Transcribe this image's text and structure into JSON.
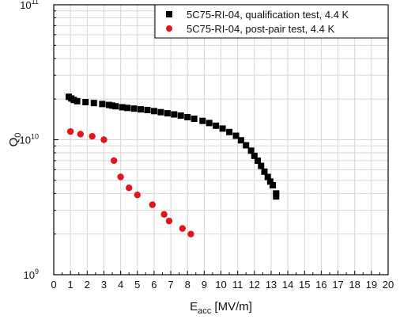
{
  "chart_data": {
    "type": "scatter",
    "xlabel": "E",
    "xlabel_sub": "acc",
    "xlabel_unit": " [MV/m]",
    "ylabel": "Q",
    "ylabel_sub": "0",
    "xlim": [
      0,
      20
    ],
    "ylim": [
      1000000000,
      100000000000
    ],
    "yscale": "log",
    "grid": true,
    "legend_position": "top-right",
    "x_ticks": [
      "0",
      "1",
      "2",
      "3",
      "4",
      "5",
      "6",
      "7",
      "8",
      "9",
      "10",
      "11",
      "12",
      "13",
      "14",
      "15",
      "16",
      "17",
      "18",
      "19",
      "20"
    ],
    "y_ticks": [
      {
        "base": "10",
        "exp": "9",
        "value": 1000000000
      },
      {
        "base": "10",
        "exp": "10",
        "value": 10000000000
      },
      {
        "base": "10",
        "exp": "11",
        "value": 100000000000
      }
    ],
    "series": [
      {
        "name": "5C75-RI-04, qualification test, 4.4 K",
        "marker": "square",
        "color": "#000000",
        "points": [
          [
            0.9,
            20800000000.0
          ],
          [
            1.05,
            20200000000.0
          ],
          [
            1.2,
            19700000000.0
          ],
          [
            1.4,
            19300000000.0
          ],
          [
            1.9,
            19000000000.0
          ],
          [
            2.4,
            18700000000.0
          ],
          [
            2.9,
            18400000000.0
          ],
          [
            3.3,
            18100000000.0
          ],
          [
            3.5,
            17900000000.0
          ],
          [
            3.7,
            17700000000.0
          ],
          [
            4.1,
            17400000000.0
          ],
          [
            4.4,
            17200000000.0
          ],
          [
            4.8,
            17000000000.0
          ],
          [
            5.2,
            16800000000.0
          ],
          [
            5.6,
            16600000000.0
          ],
          [
            6.0,
            16300000000.0
          ],
          [
            6.4,
            16000000000.0
          ],
          [
            6.8,
            15700000000.0
          ],
          [
            7.2,
            15400000000.0
          ],
          [
            7.6,
            15100000000.0
          ],
          [
            8.0,
            14700000000.0
          ],
          [
            8.4,
            14300000000.0
          ],
          [
            8.9,
            13800000000.0
          ],
          [
            9.3,
            13300000000.0
          ],
          [
            9.7,
            12700000000.0
          ],
          [
            10.1,
            12100000000.0
          ],
          [
            10.5,
            11400000000.0
          ],
          [
            10.9,
            10700000000.0
          ],
          [
            11.2,
            9900000000.0
          ],
          [
            11.5,
            9100000000.0
          ],
          [
            11.8,
            8300000000.0
          ],
          [
            12.0,
            7600000000.0
          ],
          [
            12.2,
            7000000000.0
          ],
          [
            12.4,
            6400000000.0
          ],
          [
            12.6,
            5800000000.0
          ],
          [
            12.8,
            5300000000.0
          ],
          [
            12.95,
            4900000000.0
          ],
          [
            13.1,
            4600000000.0
          ],
          [
            13.3,
            4000000000.0
          ],
          [
            13.3,
            3800000000.0
          ]
        ]
      },
      {
        "name": "5C75-RI-04, post-pair test, 4.4 K",
        "marker": "circle",
        "color": "#e3141c",
        "points": [
          [
            1.0,
            11500000000.0
          ],
          [
            1.6,
            11000000000.0
          ],
          [
            2.3,
            10600000000.0
          ],
          [
            3.0,
            10000000000.0
          ],
          [
            3.6,
            7000000000.0
          ],
          [
            4.0,
            5300000000.0
          ],
          [
            4.5,
            4400000000.0
          ],
          [
            5.0,
            3900000000.0
          ],
          [
            5.9,
            3300000000.0
          ],
          [
            6.6,
            2800000000.0
          ],
          [
            6.9,
            2500000000.0
          ],
          [
            7.7,
            2200000000.0
          ],
          [
            8.2,
            2000000000.0
          ]
        ]
      }
    ]
  }
}
